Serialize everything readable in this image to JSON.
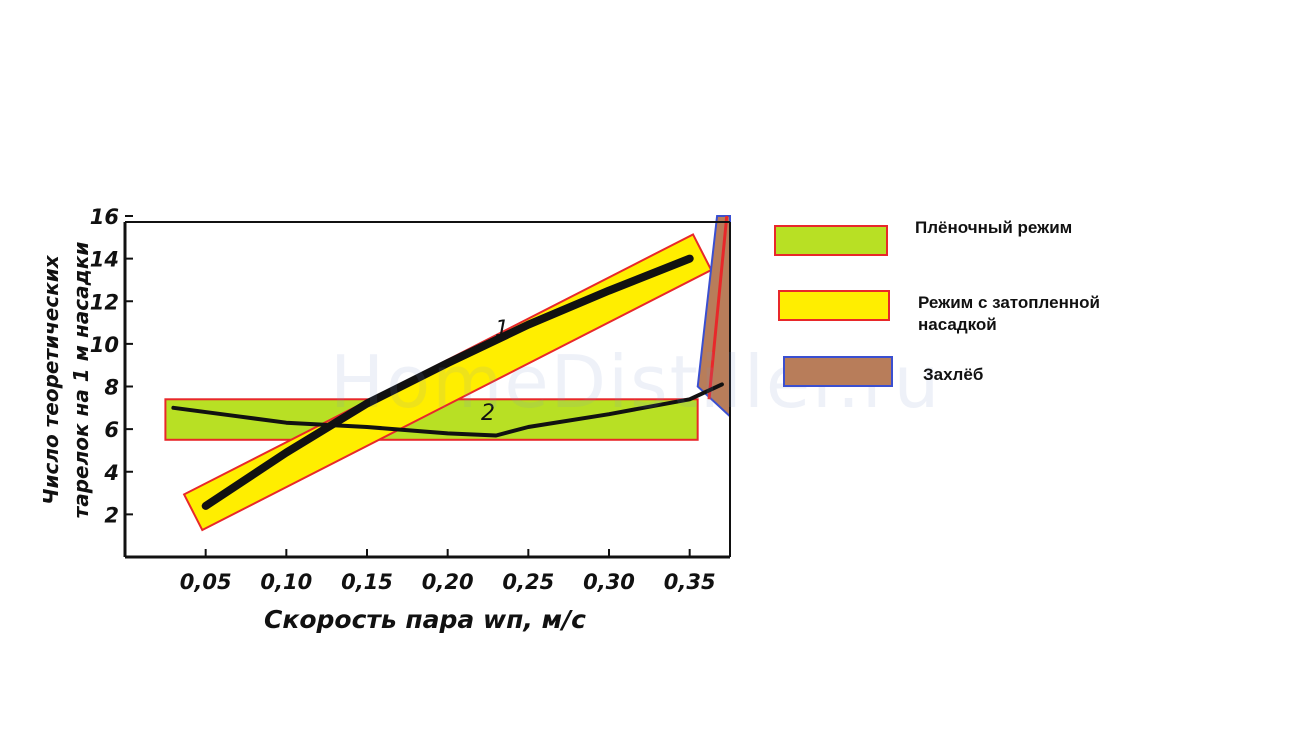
{
  "watermark": "HomeDistiller.ru",
  "chart_data": {
    "type": "line",
    "xlabel": "Скорость пара wп, м/с",
    "ylabel_lines": [
      "Число теоретических",
      "тарелок на 1 м насадки"
    ],
    "x_ticks": [
      {
        "value": 0.05,
        "label": "0,05"
      },
      {
        "value": 0.1,
        "label": "0,10"
      },
      {
        "value": 0.15,
        "label": "0,15"
      },
      {
        "value": 0.2,
        "label": "0,20"
      },
      {
        "value": 0.25,
        "label": "0,25"
      },
      {
        "value": 0.3,
        "label": "0,30"
      },
      {
        "value": 0.35,
        "label": "0,35"
      }
    ],
    "y_ticks": [
      {
        "value": 2,
        "label": "2"
      },
      {
        "value": 4,
        "label": "4"
      },
      {
        "value": 6,
        "label": "6"
      },
      {
        "value": 8,
        "label": "8"
      },
      {
        "value": 10,
        "label": "10"
      },
      {
        "value": 12,
        "label": "12"
      },
      {
        "value": 14,
        "label": "14"
      },
      {
        "value": 16,
        "label": "16"
      }
    ],
    "xlim": [
      0.0,
      0.375
    ],
    "ylim": [
      0,
      16
    ],
    "series": [
      {
        "name": "1",
        "points": [
          [
            0.05,
            2.4
          ],
          [
            0.1,
            4.9
          ],
          [
            0.15,
            7.2
          ],
          [
            0.2,
            9.1
          ],
          [
            0.25,
            10.9
          ],
          [
            0.3,
            12.5
          ],
          [
            0.35,
            14.0
          ]
        ]
      },
      {
        "name": "2",
        "points": [
          [
            0.03,
            7.0
          ],
          [
            0.07,
            6.6
          ],
          [
            0.1,
            6.3
          ],
          [
            0.15,
            6.1
          ],
          [
            0.2,
            5.8
          ],
          [
            0.23,
            5.7
          ],
          [
            0.25,
            6.1
          ],
          [
            0.3,
            6.7
          ],
          [
            0.35,
            7.4
          ],
          [
            0.37,
            8.1
          ]
        ]
      }
    ],
    "regions": [
      {
        "name": "Плёночный режим",
        "color": "#b8e024",
        "kind": "band",
        "x": [
          0.03,
          0.35
        ],
        "y": [
          5.5,
          7.4
        ]
      },
      {
        "name": "Режим с затопленной насадкой",
        "color": "#ffee00",
        "kind": "diagonal-band",
        "from": [
          0.05,
          2.4
        ],
        "to": [
          0.35,
          14.0
        ]
      },
      {
        "name": "Захлёб",
        "color": "#b87d5a",
        "kind": "flood-wedge"
      }
    ]
  },
  "legend": [
    {
      "label": "Плёночный режим",
      "fill": "#b8e024",
      "border": "#e8282a"
    },
    {
      "label_lines": [
        "Режим с затопленной",
        "насадкой"
      ],
      "fill": "#ffee00",
      "border": "#e8282a"
    },
    {
      "label": "Захлёб",
      "fill": "#b87d5a",
      "border": "#3a4fd0"
    }
  ]
}
